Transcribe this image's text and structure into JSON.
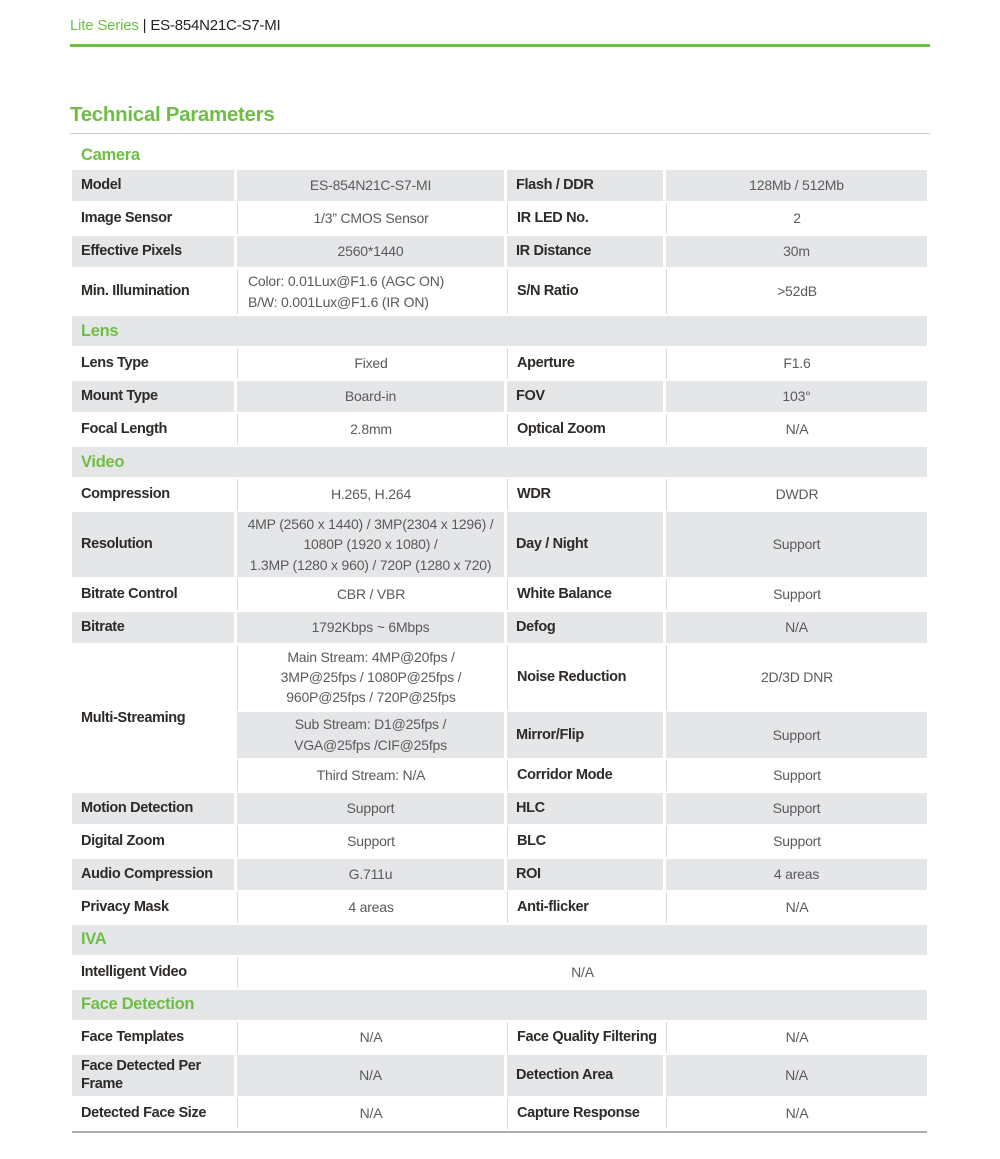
{
  "colors": {
    "accent_green": "#6ebe45",
    "band_gray": "#e5e6e7"
  },
  "header": {
    "series": "Lite Series",
    "divider": "|",
    "model": "ES-854N21C-S7-MI"
  },
  "title": "Technical Parameters",
  "camera": {
    "title": "Camera",
    "rows": [
      {
        "l1": "Model",
        "v1": "ES-854N21C-S7-MI",
        "l2": "Flash / DDR",
        "v2": "128Mb / 512Mb"
      },
      {
        "l1": "Image Sensor",
        "v1": "1/3” CMOS Sensor",
        "l2": "IR LED No.",
        "v2": "2"
      },
      {
        "l1": "Effective Pixels",
        "v1": "2560*1440",
        "l2": "IR Distance",
        "v2": "30m"
      },
      {
        "l1": "Min. Illumination",
        "v1_lines": [
          "Color: 0.01Lux@F1.6 (AGC ON)",
          "B/W: 0.001Lux@F1.6 (IR ON)"
        ],
        "l2": "S/N Ratio",
        "v2": ">52dB"
      }
    ]
  },
  "lens": {
    "title": "Lens",
    "rows": [
      {
        "l1": "Lens Type",
        "v1": "Fixed",
        "l2": "Aperture",
        "v2": "F1.6"
      },
      {
        "l1": "Mount Type",
        "v1": "Board-in",
        "l2": "FOV",
        "v2": "103°"
      },
      {
        "l1": "Focal Length",
        "v1": "2.8mm",
        "l2": "Optical Zoom",
        "v2": "N/A"
      }
    ]
  },
  "video": {
    "title": "Video",
    "rows_a": [
      {
        "l1": "Compression",
        "v1": "H.265, H.264",
        "l2": "WDR",
        "v2": "DWDR"
      },
      {
        "l1": "Resolution",
        "v1_lines": [
          "4MP (2560 x 1440) / 3MP(2304 x 1296) /",
          "1080P (1920 x 1080) /",
          "1.3MP (1280 x 960) / 720P (1280 x 720)"
        ],
        "l2": "Day / Night",
        "v2": "Support"
      },
      {
        "l1": "Bitrate Control",
        "v1": "CBR / VBR",
        "l2": "White Balance",
        "v2": "Support"
      },
      {
        "l1": "Bitrate",
        "v1": "1792Kbps ~ 6Mbps",
        "l2": "Defog",
        "v2": "N/A"
      }
    ],
    "multi": {
      "label": "Multi-Streaming",
      "main_lines": [
        "Main Stream: 4MP@20fps /",
        "3MP@25fps / 1080P@25fps /",
        "960P@25fps / 720P@25fps"
      ],
      "sub_lines": [
        "Sub Stream: D1@25fps /",
        "VGA@25fps /CIF@25fps"
      ],
      "third": "Third Stream: N/A",
      "right": [
        {
          "l": "Noise Reduction",
          "v": "2D/3D DNR"
        },
        {
          "l": "Mirror/Flip",
          "v": "Support"
        },
        {
          "l": "Corridor Mode",
          "v": "Support"
        }
      ]
    },
    "rows_b": [
      {
        "l1": "Motion Detection",
        "v1": "Support",
        "l2": "HLC",
        "v2": "Support"
      },
      {
        "l1": "Digital Zoom",
        "v1": "Support",
        "l2": "BLC",
        "v2": "Support"
      },
      {
        "l1": "Audio Compression",
        "v1": "G.711u",
        "l2": "ROI",
        "v2": "4 areas"
      },
      {
        "l1": "Privacy Mask",
        "v1": "4 areas",
        "l2": "Anti-flicker",
        "v2": "N/A"
      }
    ]
  },
  "iva": {
    "title": "IVA",
    "row": {
      "l1": "Intelligent Video",
      "v": "N/A"
    }
  },
  "face": {
    "title": "Face Detection",
    "rows": [
      {
        "l1": "Face Templates",
        "v1": "N/A",
        "l2": "Face Quality Filtering",
        "v2": "N/A"
      },
      {
        "l1": "Face Detected Per Frame",
        "v1": "N/A",
        "l2": "Detection Area",
        "v2": "N/A"
      },
      {
        "l1": "Detected Face Size",
        "v1": "N/A",
        "l2": "Capture Response",
        "v2": "N/A"
      }
    ]
  }
}
